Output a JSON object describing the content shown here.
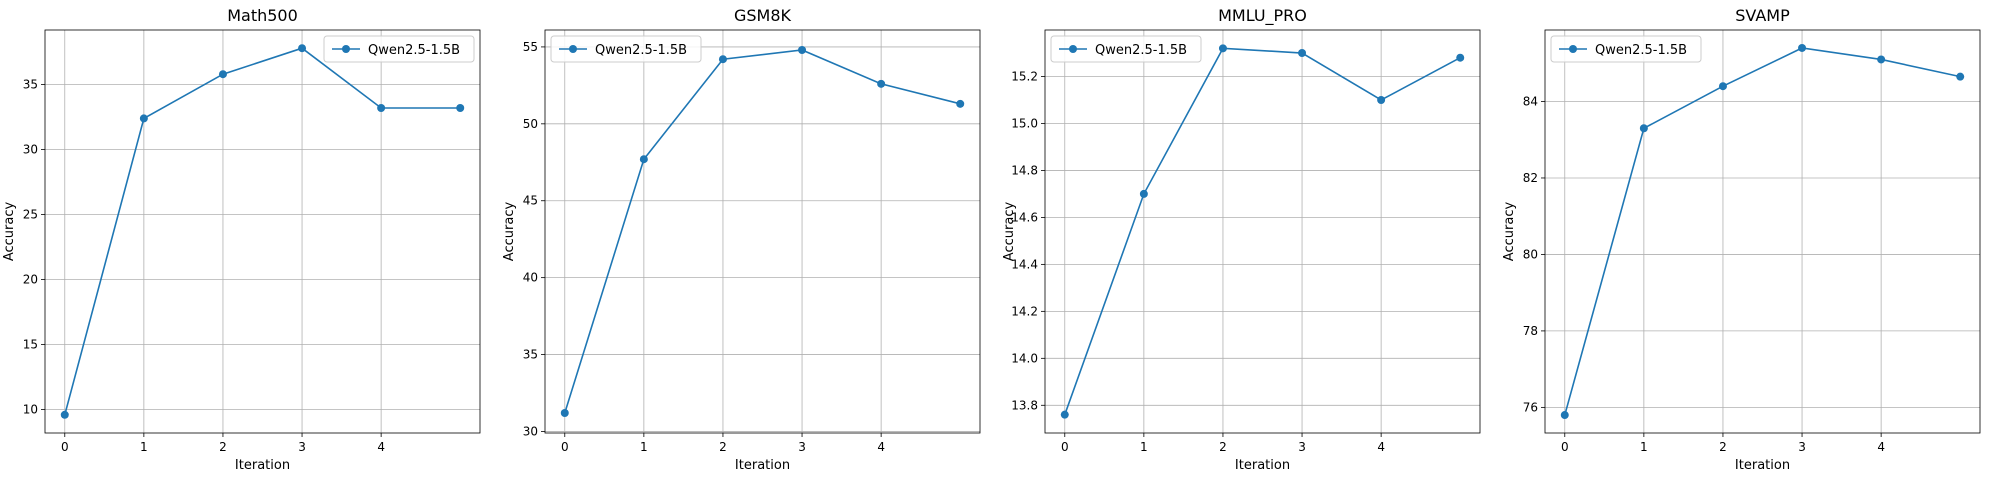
{
  "colors": {
    "line": "#1f77b4",
    "grid": "#b0b0b0",
    "axes": "#000000",
    "legend_border": "#cccccc"
  },
  "chart_data": [
    {
      "type": "line",
      "title": "Math500",
      "xlabel": "Iteration",
      "ylabel": "Accuracy",
      "x": [
        0,
        1,
        2,
        3,
        4,
        5
      ],
      "series": [
        {
          "name": "Qwen2.5-1.5B",
          "values": [
            9.6,
            32.4,
            35.8,
            37.8,
            33.2,
            33.2
          ]
        }
      ],
      "xticks": [
        0,
        1,
        2,
        3,
        4
      ],
      "yticks": [
        10,
        15,
        20,
        25,
        30,
        35
      ],
      "xlim": [
        -0.25,
        5.25
      ],
      "ylim": [
        8.2,
        39.2
      ],
      "grid": true,
      "legend": "top-right"
    },
    {
      "type": "line",
      "title": "GSM8K",
      "xlabel": "Iteration",
      "ylabel": "Accuracy",
      "x": [
        0,
        1,
        2,
        3,
        4,
        5
      ],
      "series": [
        {
          "name": "Qwen2.5-1.5B",
          "values": [
            31.2,
            47.7,
            54.2,
            54.8,
            52.6,
            51.3
          ]
        }
      ],
      "xticks": [
        0,
        1,
        2,
        3,
        4
      ],
      "yticks": [
        30,
        35,
        40,
        45,
        50,
        55
      ],
      "xlim": [
        -0.25,
        5.25
      ],
      "ylim": [
        29.9,
        56.1
      ],
      "grid": true,
      "legend": "top-left"
    },
    {
      "type": "line",
      "title": "MMLU_PRO",
      "xlabel": "Iteration",
      "ylabel": "Accuracy",
      "x": [
        0,
        1,
        2,
        3,
        4,
        5
      ],
      "series": [
        {
          "name": "Qwen2.5-1.5B",
          "values": [
            13.76,
            14.7,
            15.32,
            15.3,
            15.1,
            15.28
          ]
        }
      ],
      "xticks": [
        0,
        1,
        2,
        3,
        4
      ],
      "yticks": [
        13.8,
        14.0,
        14.2,
        14.4,
        14.6,
        14.8,
        15.0,
        15.2
      ],
      "tick_labels_y": [
        "13.8",
        "14.0",
        "14.2",
        "14.4",
        "14.6",
        "14.8",
        "15.0",
        "15.2"
      ],
      "xlim": [
        -0.25,
        5.25
      ],
      "ylim": [
        13.682,
        15.398
      ],
      "grid": true,
      "legend": "top-left"
    },
    {
      "type": "line",
      "title": "SVAMP",
      "xlabel": "Iteration",
      "ylabel": "Accuracy",
      "x": [
        0,
        1,
        2,
        3,
        4,
        5
      ],
      "series": [
        {
          "name": "Qwen2.5-1.5B",
          "values": [
            75.8,
            83.3,
            84.4,
            85.4,
            85.1,
            84.65
          ]
        }
      ],
      "xticks": [
        0,
        1,
        2,
        3,
        4
      ],
      "yticks": [
        76,
        78,
        80,
        82,
        84
      ],
      "xlim": [
        -0.25,
        5.25
      ],
      "ylim": [
        75.33,
        85.87
      ],
      "grid": true,
      "legend": "top-left"
    }
  ]
}
